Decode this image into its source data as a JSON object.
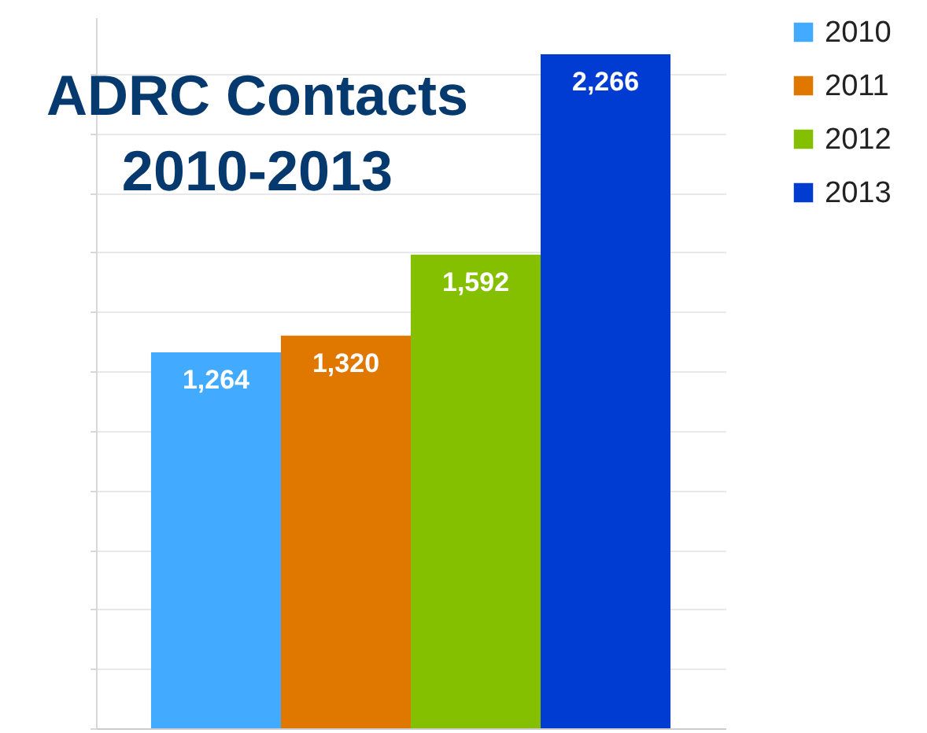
{
  "chart_data": {
    "type": "bar",
    "title": [
      "ADRC Contacts",
      "2010-2013"
    ],
    "categories": [
      null
    ],
    "series": [
      {
        "name": "2010",
        "color": "#42aaff",
        "values": [
          1264
        ],
        "value_labels": [
          "1,264"
        ]
      },
      {
        "name": "2011",
        "color": "#e07800",
        "values": [
          1320
        ],
        "value_labels": [
          "1,320"
        ]
      },
      {
        "name": "2012",
        "color": "#84c000",
        "values": [
          1592
        ],
        "value_labels": [
          "1,592"
        ]
      },
      {
        "name": "2013",
        "color": "#003cd2",
        "values": [
          2266
        ],
        "value_labels": [
          "2,266"
        ]
      }
    ],
    "grid": "y",
    "legend": "right",
    "tick_labels": false
  }
}
